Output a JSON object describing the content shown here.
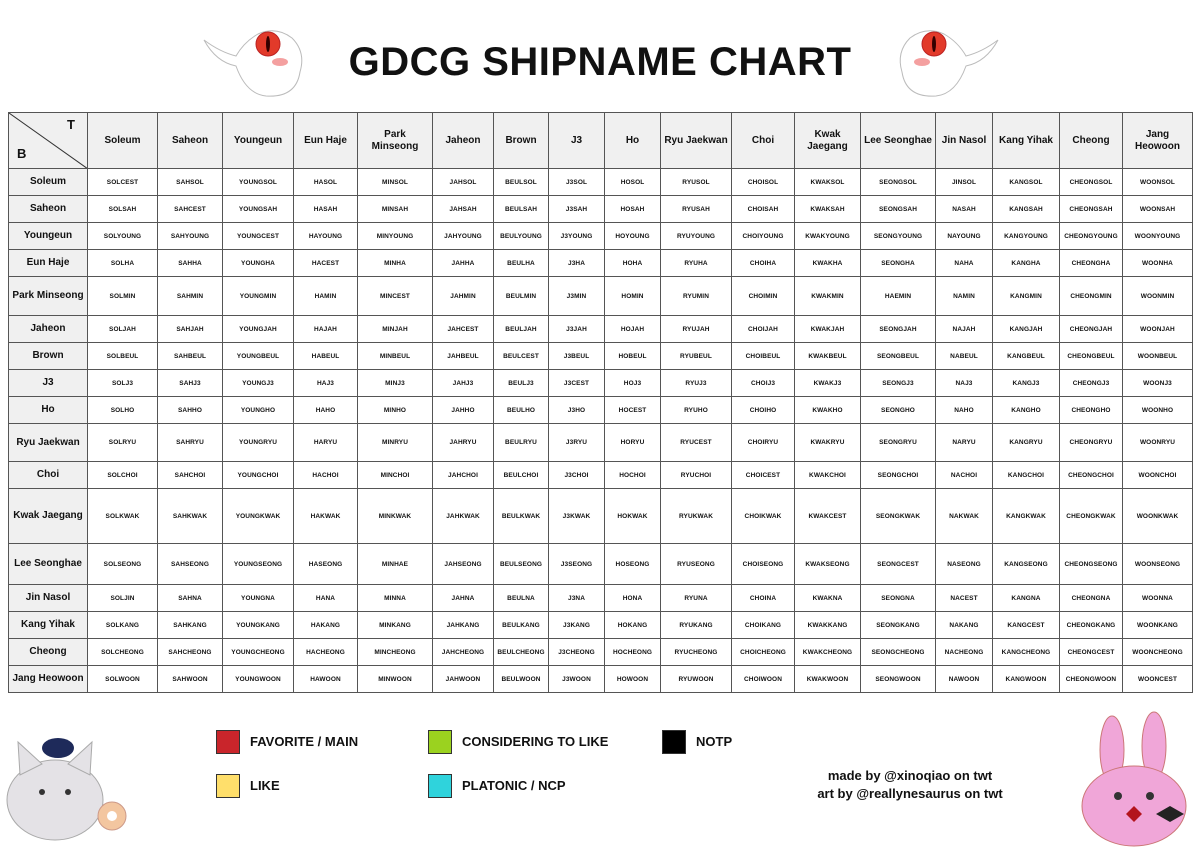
{
  "header": {
    "title": "GDCG SHIPNAME CHART"
  },
  "table": {
    "corner_top": "T",
    "corner_bottom": "B",
    "columns": [
      "Soleum",
      "Saheon",
      "Youngeun",
      "Eun Haje",
      "Park Minseong",
      "Jaheon",
      "Brown",
      "J3",
      "Ho",
      "Ryu Jaekwan",
      "Choi",
      "Kwak Jaegang",
      "Lee Seonghae",
      "Jin Nasol",
      "Kang Yihak",
      "Cheong",
      "Jang Heowoon"
    ],
    "row_headers": [
      "Soleum",
      "Saheon",
      "Youngeun",
      "Eun Haje",
      "Park Minseong",
      "Jaheon",
      "Brown",
      "J3",
      "Ho",
      "Ryu Jaekwan",
      "Choi",
      "Kwak Jaegang",
      "Lee Seonghae",
      "Jin Nasol",
      "Kang Yihak",
      "Cheong",
      "Jang Heowoon"
    ],
    "rows": [
      [
        "SOLCEST",
        "SAHSOL",
        "YOUNGSOL",
        "HASOL",
        "MINSOL",
        "JAHSOL",
        "BEULSOL",
        "J3SOL",
        "HOSOL",
        "RYUSOL",
        "CHOISOL",
        "KWAKSOL",
        "SEONGSOL",
        "JINSOL",
        "KANGSOL",
        "CHEONGSOL",
        "WOONSOL"
      ],
      [
        "SOLSAH",
        "SAHCEST",
        "YOUNGSAH",
        "HASAH",
        "MINSAH",
        "JAHSAH",
        "BEULSAH",
        "J3SAH",
        "HOSAH",
        "RYUSAH",
        "CHOISAH",
        "KWAKSAH",
        "SEONGSAH",
        "NASAH",
        "KANGSAH",
        "CHEONGSAH",
        "WOONSAH"
      ],
      [
        "SOLYOUNG",
        "SAHYOUNG",
        "YOUNGCEST",
        "HAYOUNG",
        "MINYOUNG",
        "JAHYOUNG",
        "BEULYOUNG",
        "J3YOUNG",
        "HOYOUNG",
        "RYUYOUNG",
        "CHOIYOUNG",
        "KWAKYOUNG",
        "SEONGYOUNG",
        "NAYOUNG",
        "KANGYOUNG",
        "CHEONGYOUNG",
        "WOONYOUNG"
      ],
      [
        "SOLHA",
        "SAHHA",
        "YOUNGHA",
        "HACEST",
        "MINHA",
        "JAHHA",
        "BEULHA",
        "J3HA",
        "HOHA",
        "RYUHA",
        "CHOIHA",
        "KWAKHA",
        "SEONGHA",
        "NAHA",
        "KANGHA",
        "CHEONGHA",
        "WOONHA"
      ],
      [
        "SOLMIN",
        "SAHMIN",
        "YOUNGMIN",
        "HAMIN",
        "MINCEST",
        "JAHMIN",
        "BEULMIN",
        "J3MIN",
        "HOMIN",
        "RYUMIN",
        "CHOIMIN",
        "KWAKMIN",
        "HAEMIN",
        "NAMIN",
        "KANGMIN",
        "CHEONGMIN",
        "WOONMIN"
      ],
      [
        "SOLJAH",
        "SAHJAH",
        "YOUNGJAH",
        "HAJAH",
        "MINJAH",
        "JAHCEST",
        "BEULJAH",
        "J3JAH",
        "HOJAH",
        "RYUJAH",
        "CHOIJAH",
        "KWAKJAH",
        "SEONGJAH",
        "NAJAH",
        "KANGJAH",
        "CHEONGJAH",
        "WOONJAH"
      ],
      [
        "SOLBEUL",
        "SAHBEUL",
        "YOUNGBEUL",
        "HABEUL",
        "MINBEUL",
        "JAHBEUL",
        "BEULCEST",
        "J3BEUL",
        "HOBEUL",
        "RYUBEUL",
        "CHOIBEUL",
        "KWAKBEUL",
        "SEONGBEUL",
        "NABEUL",
        "KANGBEUL",
        "CHEONGBEUL",
        "WOONBEUL"
      ],
      [
        "SOLJ3",
        "SAHJ3",
        "YOUNGJ3",
        "HAJ3",
        "MINJ3",
        "JAHJ3",
        "BEULJ3",
        "J3CEST",
        "HOJ3",
        "RYUJ3",
        "CHOIJ3",
        "KWAKJ3",
        "SEONGJ3",
        "NAJ3",
        "KANGJ3",
        "CHEONGJ3",
        "WOONJ3"
      ],
      [
        "SOLHO",
        "SAHHO",
        "YOUNGHO",
        "HAHO",
        "MINHO",
        "JAHHO",
        "BEULHO",
        "J3HO",
        "HOCEST",
        "RYUHO",
        "CHOIHO",
        "KWAKHO",
        "SEONGHO",
        "NAHO",
        "KANGHO",
        "CHEONGHO",
        "WOONHO"
      ],
      [
        "SOLRYU",
        "SAHRYU",
        "YOUNGRYU",
        "HARYU",
        "MINRYU",
        "JAHRYU",
        "BEULRYU",
        "J3RYU",
        "HORYU",
        "RYUCEST",
        "CHOIRYU",
        "KWAKRYU",
        "SEONGRYU",
        "NARYU",
        "KANGRYU",
        "CHEONGRYU",
        "WOONRYU"
      ],
      [
        "SOLCHOI",
        "SAHCHOI",
        "YOUNGCHOI",
        "HACHOI",
        "MINCHOI",
        "JAHCHOI",
        "BEULCHOI",
        "J3CHOI",
        "HOCHOI",
        "RYUCHOI",
        "CHOICEST",
        "KWAKCHOI",
        "SEONGCHOI",
        "NACHOI",
        "KANGCHOI",
        "CHEONGCHOI",
        "WOONCHOI"
      ],
      [
        "SOLKWAK",
        "SAHKWAK",
        "YOUNGKWAK",
        "HAKWAK",
        "MINKWAK",
        "JAHKWAK",
        "BEULKWAK",
        "J3KWAK",
        "HOKWAK",
        "RYUKWAK",
        "CHOIKWAK",
        "KWAKCEST",
        "SEONGKWAK",
        "NAKWAK",
        "KANGKWAK",
        "CHEONGKWAK",
        "WOONKWAK"
      ],
      [
        "SOLSEONG",
        "SAHSEONG",
        "YOUNGSEONG",
        "HASEONG",
        "MINHAE",
        "JAHSEONG",
        "BEULSEONG",
        "J3SEONG",
        "HOSEONG",
        "RYUSEONG",
        "CHOISEONG",
        "KWAKSEONG",
        "SEONGCEST",
        "NASEONG",
        "KANGSEONG",
        "CHEONGSEONG",
        "WOONSEONG"
      ],
      [
        "SOLJIN",
        "SAHNA",
        "YOUNGNA",
        "HANA",
        "MINNA",
        "JAHNA",
        "BEULNA",
        "J3NA",
        "HONA",
        "RYUNA",
        "CHOINA",
        "KWAKNA",
        "SEONGNA",
        "NACEST",
        "KANGNA",
        "CHEONGNA",
        "WOONNA"
      ],
      [
        "SOLKANG",
        "SAHKANG",
        "YOUNGKANG",
        "HAKANG",
        "MINKANG",
        "JAHKANG",
        "BEULKANG",
        "J3KANG",
        "HOKANG",
        "RYUKANG",
        "CHOIKANG",
        "KWAKKANG",
        "SEONGKANG",
        "NAKANG",
        "KANGCEST",
        "CHEONGKANG",
        "WOONKANG"
      ],
      [
        "SOLCHEONG",
        "SAHCHEONG",
        "YOUNGCHEONG",
        "HACHEONG",
        "MINCHEONG",
        "JAHCHEONG",
        "BEULCHEONG",
        "J3CHEONG",
        "HOCHEONG",
        "RYUCHEONG",
        "CHOICHEONG",
        "KWAKCHEONG",
        "SEONGCHEONG",
        "NACHEONG",
        "KANGCHEONG",
        "CHEONGCEST",
        "WOONCHEONG"
      ],
      [
        "SOLWOON",
        "SAHWOON",
        "YOUNGWOON",
        "HAWOON",
        "MINWOON",
        "JAHWOON",
        "BEULWOON",
        "J3WOON",
        "HOWOON",
        "RYUWOON",
        "CHOIWOON",
        "KWAKWOON",
        "SEONGWOON",
        "NAWOON",
        "KANGWOON",
        "CHEONGWOON",
        "WOONCEST"
      ]
    ]
  },
  "legend": [
    {
      "label": "FAVORITE / MAIN",
      "color": "#c9252b"
    },
    {
      "label": "CONSIDERING TO LIKE",
      "color": "#9bd21f"
    },
    {
      "label": "NOTP",
      "color": "#000000"
    },
    {
      "label": "LIKE",
      "color": "#ffdf6b"
    },
    {
      "label": "PLATONIC / NCP",
      "color": "#2fd3dc"
    }
  ],
  "credits": [
    "made by @xinoqiao on twt",
    "art by @reallynesaurus on twt"
  ]
}
